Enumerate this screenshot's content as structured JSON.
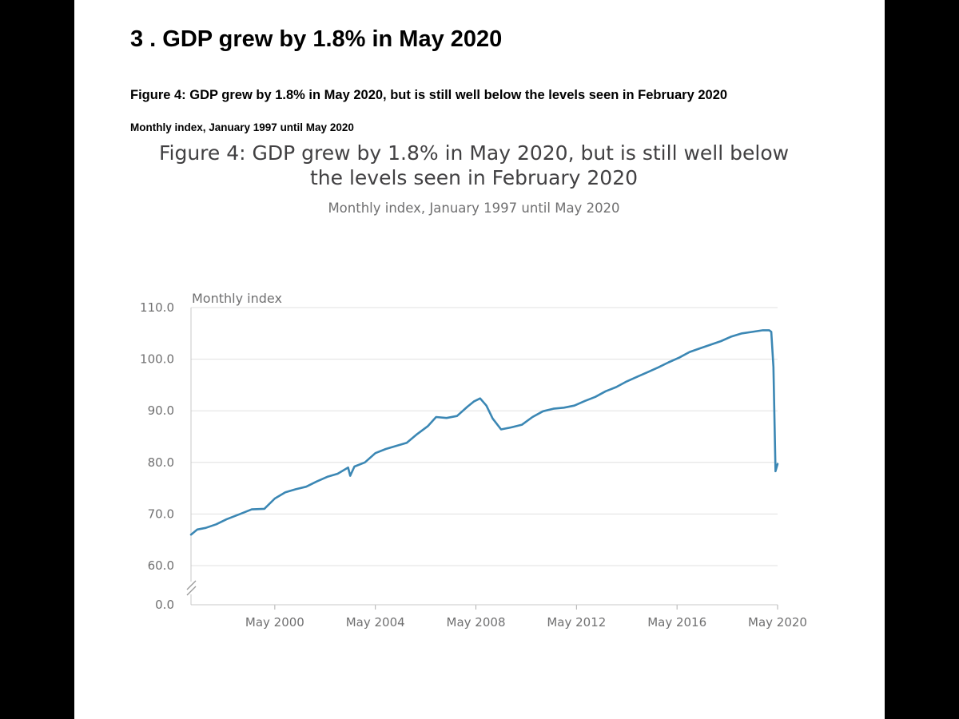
{
  "section_title": "3 . GDP grew by 1.8% in May 2020",
  "figure_heading": "Figure 4: GDP grew by 1.8% in May 2020, but is still well below the levels seen in February 2020",
  "figure_subheading": "Monthly index, January 1997 until May 2020",
  "colors": {
    "line": "#3b87b4",
    "grid": "#e0e0e0",
    "text": "#707071",
    "background": "#ffffff",
    "frame": "#000000"
  },
  "chart_data": {
    "type": "line",
    "title": "Figure 4: GDP grew by 1.8% in May 2020, but is still well below the levels seen in February 2020",
    "subtitle": "Monthly index, January 1997 until May 2020",
    "ylabel": "Monthly index",
    "xlabel": "",
    "ylim": [
      60,
      110
    ],
    "y_axis_break": true,
    "y_ticks": [
      "110.0",
      "100.0",
      "90.0",
      "80.0",
      "70.0",
      "60.0",
      "0.0"
    ],
    "x_ticks": [
      "May 2000",
      "May 2004",
      "May 2008",
      "May 2012",
      "May 2016",
      "May 2020"
    ],
    "x_range": [
      "1997-01",
      "2020-05"
    ],
    "grid": true,
    "legend": "none",
    "series": [
      {
        "values": [
          [
            "1997-01",
            66.0
          ],
          [
            "1997-04",
            67.0
          ],
          [
            "1997-08",
            67.3
          ],
          [
            "1998-01",
            68.0
          ],
          [
            "1998-06",
            69.0
          ],
          [
            "1999-01",
            70.1
          ],
          [
            "1999-06",
            70.9
          ],
          [
            "1999-12",
            71.0
          ],
          [
            "2000-05",
            73.0
          ],
          [
            "2000-10",
            74.2
          ],
          [
            "2001-03",
            74.8
          ],
          [
            "2001-08",
            75.3
          ],
          [
            "2002-01",
            76.3
          ],
          [
            "2002-06",
            77.2
          ],
          [
            "2002-11",
            77.8
          ],
          [
            "2003-04",
            79.0
          ],
          [
            "2003-05",
            77.4
          ],
          [
            "2003-07",
            79.2
          ],
          [
            "2003-12",
            80.0
          ],
          [
            "2004-05",
            81.8
          ],
          [
            "2004-10",
            82.6
          ],
          [
            "2005-03",
            83.2
          ],
          [
            "2005-08",
            83.8
          ],
          [
            "2006-01",
            85.5
          ],
          [
            "2006-06",
            87.0
          ],
          [
            "2006-10",
            88.8
          ],
          [
            "2007-03",
            88.6
          ],
          [
            "2007-08",
            89.0
          ],
          [
            "2008-01",
            90.8
          ],
          [
            "2008-04",
            91.8
          ],
          [
            "2008-07",
            92.4
          ],
          [
            "2008-10",
            91.0
          ],
          [
            "2009-01",
            88.5
          ],
          [
            "2009-05",
            86.4
          ],
          [
            "2009-10",
            86.8
          ],
          [
            "2010-03",
            87.3
          ],
          [
            "2010-08",
            88.8
          ],
          [
            "2011-01",
            89.9
          ],
          [
            "2011-06",
            90.4
          ],
          [
            "2011-11",
            90.6
          ],
          [
            "2012-04",
            91.0
          ],
          [
            "2012-09",
            91.9
          ],
          [
            "2013-02",
            92.7
          ],
          [
            "2013-07",
            93.8
          ],
          [
            "2013-12",
            94.6
          ],
          [
            "2014-05",
            95.7
          ],
          [
            "2014-10",
            96.6
          ],
          [
            "2015-03",
            97.5
          ],
          [
            "2015-08",
            98.4
          ],
          [
            "2016-01",
            99.4
          ],
          [
            "2016-06",
            100.3
          ],
          [
            "2016-11",
            101.4
          ],
          [
            "2017-04",
            102.1
          ],
          [
            "2017-09",
            102.8
          ],
          [
            "2018-02",
            103.5
          ],
          [
            "2018-07",
            104.4
          ],
          [
            "2018-12",
            105.0
          ],
          [
            "2019-05",
            105.3
          ],
          [
            "2019-10",
            105.6
          ],
          [
            "2020-01",
            105.6
          ],
          [
            "2020-02",
            105.3
          ],
          [
            "2020-03",
            98.5
          ],
          [
            "2020-04",
            78.3
          ],
          [
            "2020-05",
            79.7
          ]
        ]
      }
    ]
  }
}
